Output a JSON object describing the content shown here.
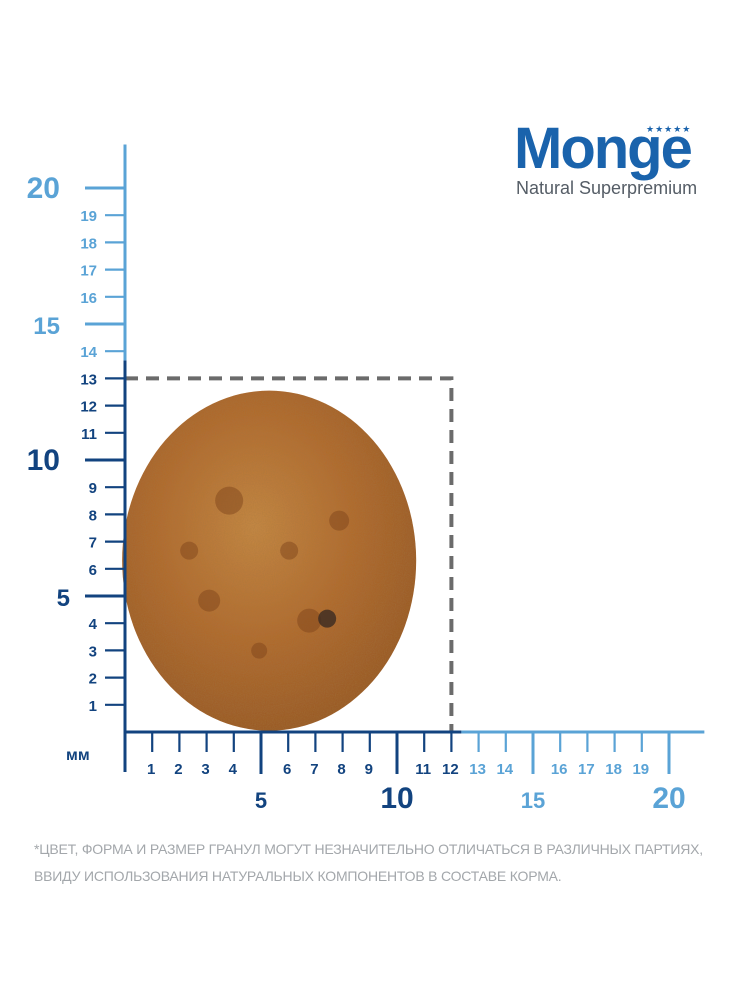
{
  "brand": {
    "name": "Monge",
    "tagline": "Natural Superpremium",
    "stars": "★★★★★",
    "color": "#1a63ac",
    "tagline_color": "#555d66"
  },
  "colors": {
    "dark_blue": "#12437f",
    "light_blue": "#5aa3d6",
    "box_border": "#6b6b6b",
    "kibble": "#b9702f",
    "footnote": "#a3a7ab"
  },
  "ruler": {
    "unit_label": "мм",
    "y_axis": {
      "max": 20,
      "box_top_value": 13,
      "small_labels": [
        "1",
        "2",
        "3",
        "4",
        "6",
        "7",
        "8",
        "9",
        "11",
        "12",
        "13",
        "14",
        "16",
        "17",
        "18",
        "19"
      ],
      "major_labels": [
        "5",
        "10",
        "15",
        "20"
      ]
    },
    "x_axis": {
      "max": 20,
      "box_right_value": 12,
      "small_labels": [
        "1",
        "2",
        "3",
        "4",
        "6",
        "7",
        "8",
        "9",
        "11",
        "12",
        "13",
        "14",
        "16",
        "17",
        "18",
        "19"
      ],
      "major_labels": [
        "5",
        "10",
        "15",
        "20"
      ]
    }
  },
  "product": {
    "icon": "kibble-pellet-image",
    "size_mm": "12 x 13"
  },
  "footnote": {
    "line1": "*ЦВЕТ, ФОРМА И РАЗМЕР ГРАНУЛ МОГУТ НЕЗНАЧИТЕЛЬНО ОТЛИЧАТЬСЯ В РАЗЛИЧНЫХ ПАРТИЯХ,",
    "line2": "ВВИДУ ИСПОЛЬЗОВАНИЯ НАТУРАЛЬНЫХ КОМПОНЕНТОВ В СОСТАВЕ КОРМА."
  }
}
